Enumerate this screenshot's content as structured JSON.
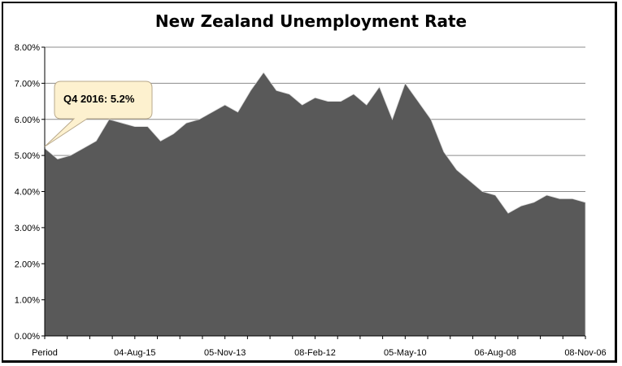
{
  "chart_data": {
    "type": "area",
    "title": "New Zealand Unemployment Rate",
    "xlabel": "",
    "ylabel": "",
    "ylim": [
      0,
      8
    ],
    "y_ticks": [
      "0.00%",
      "1.00%",
      "2.00%",
      "3.00%",
      "4.00%",
      "5.00%",
      "6.00%",
      "7.00%",
      "8.00%"
    ],
    "x_tick_labels": [
      "Period",
      "04-Aug-15",
      "05-Nov-13",
      "08-Feb-12",
      "05-May-10",
      "06-Aug-08",
      "08-Nov-06"
    ],
    "x_tick_indices": [
      0,
      8,
      16,
      24,
      32,
      40,
      48
    ],
    "grid": true,
    "color": "#595959",
    "values": [
      5.2,
      4.9,
      5.0,
      5.2,
      5.4,
      6.0,
      5.9,
      5.8,
      5.8,
      5.4,
      5.6,
      5.9,
      6.0,
      6.2,
      6.4,
      6.2,
      6.8,
      7.3,
      6.8,
      6.7,
      6.4,
      6.6,
      6.5,
      6.5,
      6.7,
      6.4,
      6.9,
      6.0,
      7.0,
      6.5,
      6.0,
      5.1,
      4.6,
      4.3,
      4.0,
      3.9,
      3.4,
      3.6,
      3.7,
      3.9,
      3.8,
      3.8,
      3.7
    ],
    "annotation": {
      "text": "Q4 2016: 5.2%",
      "point_index": 0
    }
  }
}
